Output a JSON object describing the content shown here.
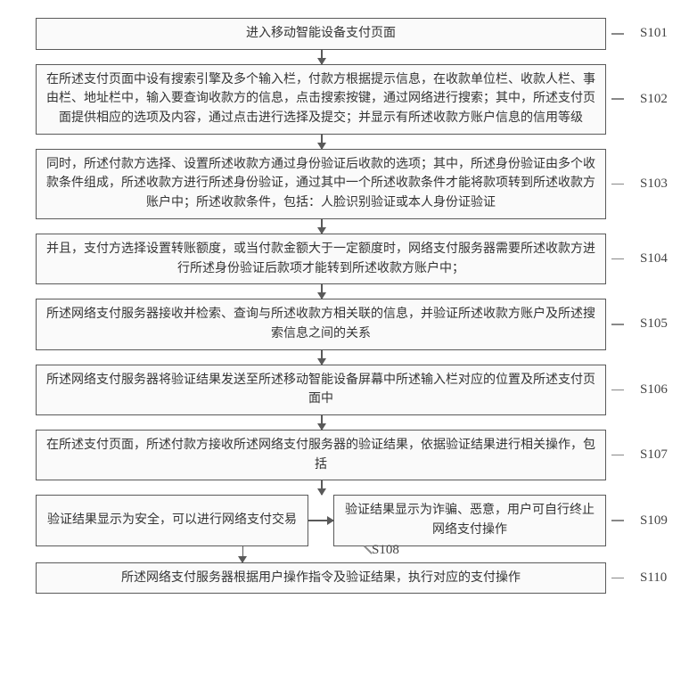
{
  "steps": {
    "s101": {
      "label": "S101",
      "text": "进入移动智能设备支付页面"
    },
    "s102": {
      "label": "S102",
      "text": "在所述支付页面中设有搜索引擎及多个输入栏，付款方根据提示信息，在收款单位栏、收款人栏、事由栏、地址栏中，输入要查询收款方的信息，点击搜索按键，通过网络进行搜索；其中，所述支付页面提供相应的选项及内容，通过点击进行选择及提交；并显示有所述收款方账户信息的信用等级"
    },
    "s103": {
      "label": "S103",
      "text": "同时，所述付款方选择、设置所述收款方通过身份验证后收款的选项；其中，所述身份验证由多个收款条件组成，所述收款方进行所述身份验证，通过其中一个所述收款条件才能将款项转到所述收款方账户中；所述收款条件，包括：人脸识别验证或本人身份证验证"
    },
    "s104": {
      "label": "S104",
      "text": "并且，支付方选择设置转账额度，或当付款金额大于一定额度时，网络支付服务器需要所述收款方进行所述身份验证后款项才能转到所述收款方账户中；"
    },
    "s105": {
      "label": "S105",
      "text": "所述网络支付服务器接收并检索、查询与所述收款方相关联的信息，并验证所述收款方账户及所述搜索信息之间的关系"
    },
    "s106": {
      "label": "S106",
      "text": "所述网络支付服务器将验证结果发送至所述移动智能设备屏幕中所述输入栏对应的位置及所述支付页面中"
    },
    "s107": {
      "label": "S107",
      "text": "在所述支付页面，所述付款方接收所述网络支付服务器的验证结果，依据验证结果进行相关操作，包括"
    },
    "s108": {
      "label": "S108",
      "text": "验证结果显示为安全，可以进行网络支付交易"
    },
    "s109": {
      "label": "S109",
      "text": "验证结果显示为诈骗、恶意，用户可自行终止网络支付操作"
    },
    "s110": {
      "label": "S110",
      "text": "所述网络支付服务器根据用户操作指令及验证结果，执行对应的支付操作"
    }
  }
}
